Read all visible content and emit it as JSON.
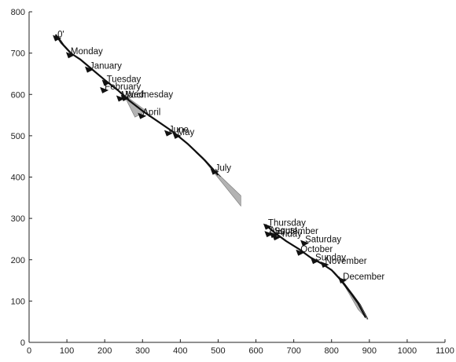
{
  "chart_data": {
    "type": "scatter",
    "title": "",
    "xlabel": "",
    "ylabel": "",
    "xlim": [
      0,
      1100
    ],
    "ylim": [
      0,
      800
    ],
    "x_ticks": [
      0,
      100,
      200,
      300,
      400,
      500,
      600,
      700,
      800,
      900,
      1000,
      1100
    ],
    "y_ticks": [
      0,
      100,
      200,
      300,
      400,
      500,
      600,
      700,
      800
    ],
    "grid": false,
    "trajectory_color": "#111111",
    "shadow_color": "#9a9a9a",
    "points": [
      {
        "label": "0'",
        "x": 75,
        "y": 738
      },
      {
        "label": "Monday",
        "x": 110,
        "y": 697
      },
      {
        "label": "January",
        "x": 160,
        "y": 662
      },
      {
        "label": "Tuesday",
        "x": 205,
        "y": 630
      },
      {
        "label": "February",
        "x": 200,
        "y": 612
      },
      {
        "label": "Wednesday",
        "x": 255,
        "y": 593
      },
      {
        "label": "March",
        "x": 243,
        "y": 592
      },
      {
        "label": "April",
        "x": 300,
        "y": 550
      },
      {
        "label": "May",
        "x": 392,
        "y": 502
      },
      {
        "label": "June",
        "x": 370,
        "y": 508
      },
      {
        "label": "July",
        "x": 492,
        "y": 415
      },
      {
        "label": "Thursday",
        "x": 632,
        "y": 282
      },
      {
        "label": "September",
        "x": 648,
        "y": 262
      },
      {
        "label": "Friday",
        "x": 655,
        "y": 256
      },
      {
        "label": "August",
        "x": 635,
        "y": 264
      },
      {
        "label": "Saturday",
        "x": 730,
        "y": 242
      },
      {
        "label": "October",
        "x": 718,
        "y": 219
      },
      {
        "label": "Sunday",
        "x": 757,
        "y": 199
      },
      {
        "label": "November",
        "x": 783,
        "y": 190
      },
      {
        "label": "December",
        "x": 830,
        "y": 152
      }
    ],
    "trajectories": [
      [
        [
          70,
          745
        ],
        [
          85,
          725
        ],
        [
          110,
          700
        ],
        [
          135,
          685
        ],
        [
          165,
          662
        ],
        [
          200,
          635
        ],
        [
          235,
          610
        ],
        [
          265,
          585
        ],
        [
          300,
          560
        ],
        [
          340,
          535
        ],
        [
          380,
          510
        ],
        [
          420,
          480
        ],
        [
          460,
          445
        ],
        [
          490,
          415
        ],
        [
          500,
          405
        ]
      ],
      [
        [
          625,
          285
        ],
        [
          650,
          265
        ],
        [
          680,
          245
        ],
        [
          715,
          225
        ],
        [
          745,
          205
        ],
        [
          775,
          190
        ],
        [
          800,
          175
        ],
        [
          825,
          150
        ],
        [
          850,
          120
        ],
        [
          870,
          95
        ],
        [
          890,
          60
        ]
      ]
    ],
    "shadows": [
      [
        [
          250,
          600
        ],
        [
          310,
          560
        ],
        [
          280,
          545
        ]
      ],
      [
        [
          440,
          460
        ],
        [
          560,
          355
        ],
        [
          560,
          330
        ],
        [
          450,
          455
        ]
      ],
      [
        [
          820,
          160
        ],
        [
          895,
          55
        ],
        [
          870,
          80
        ]
      ]
    ]
  }
}
